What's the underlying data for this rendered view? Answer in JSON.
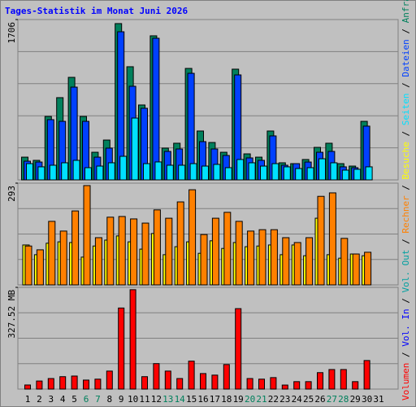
{
  "chart_data": [
    {
      "type": "bar",
      "title": "Tages-Statistik im Monat Juni 2026",
      "ylim": [
        0,
        1706
      ],
      "yticks": [
        1706
      ],
      "series": [
        {
          "name": "Anfragen",
          "color": "#00805c",
          "values": [
            242,
            208,
            675,
            875,
            1091,
            675,
            294,
            424,
            1663,
            1204,
            797,
            1533,
            338,
            390,
            1186,
            520,
            398,
            294,
            1178,
            277,
            242,
            520,
            182,
            173,
            217,
            346,
            390,
            173,
            147,
            623,
            0
          ]
        },
        {
          "name": "Dateien",
          "color": "#0040ff",
          "values": [
            199,
            190,
            641,
            623,
            987,
            623,
            242,
            338,
            1576,
            996,
            762,
            1507,
            303,
            329,
            1134,
            407,
            329,
            260,
            1117,
            234,
            208,
            468,
            156,
            173,
            190,
            294,
            303,
            139,
            130,
            572,
            0
          ]
        },
        {
          "name": "Seiten",
          "color": "#00e0ff",
          "values": [
            173,
            139,
            156,
            182,
            208,
            130,
            147,
            182,
            251,
            658,
            173,
            191,
            156,
            156,
            173,
            147,
            165,
            130,
            217,
            182,
            147,
            173,
            139,
            121,
            130,
            225,
            182,
            104,
            113,
            139,
            0
          ]
        }
      ]
    },
    {
      "type": "bar",
      "ylim": [
        0,
        293
      ],
      "yticks": [
        293
      ],
      "series": [
        {
          "name": "Besuche",
          "color": "#ffff00",
          "values": [
            115,
            87,
            120,
            124,
            122,
            80,
            112,
            129,
            141,
            124,
            103,
            148,
            87,
            110,
            124,
            91,
            127,
            105,
            122,
            110,
            112,
            115,
            87,
            115,
            84,
            192,
            87,
            77,
            89,
            84,
            0
          ]
        },
        {
          "name": "Rechner",
          "color": "#ff8000",
          "values": [
            112,
            101,
            183,
            155,
            213,
            286,
            136,
            195,
            197,
            190,
            178,
            216,
            192,
            239,
            274,
            145,
            192,
            209,
            183,
            155,
            159,
            159,
            136,
            122,
            136,
            255,
            265,
            134,
            89,
            94,
            0
          ]
        }
      ]
    },
    {
      "type": "bar",
      "ylim": [
        0,
        327.52
      ],
      "yticks": [
        {
          "value": 327.52,
          "label": "327.52 MB"
        }
      ],
      "categories": [
        "1",
        "2",
        "3",
        "4",
        "5",
        "6",
        "7",
        "8",
        "9",
        "10",
        "11",
        "12",
        "13",
        "14",
        "15",
        "16",
        "17",
        "18",
        "19",
        "20",
        "21",
        "22",
        "23",
        "24",
        "25",
        "26",
        "27",
        "28",
        "29",
        "30",
        "31"
      ],
      "category_colors": [
        "#000000",
        "#000000",
        "#000000",
        "#000000",
        "#000000",
        "#00805c",
        "#00805c",
        "#000000",
        "#000000",
        "#000000",
        "#000000",
        "#000000",
        "#00805c",
        "#00805c",
        "#000000",
        "#000000",
        "#000000",
        "#000000",
        "#000000",
        "#00805c",
        "#00805c",
        "#000000",
        "#000000",
        "#000000",
        "#000000",
        "#000000",
        "#00805c",
        "#00805c",
        "#000000",
        "#000000",
        "#000000"
      ],
      "series": [
        {
          "name": "Volumen",
          "color": "#ff0000",
          "values": [
            13.2,
            26,
            34,
            40,
            42,
            29,
            32,
            58,
            261,
            320,
            40,
            82,
            58,
            34,
            90,
            50,
            45,
            79,
            259,
            34,
            32,
            37,
            13,
            24,
            24,
            53,
            63,
            63,
            24,
            92,
            0
          ]
        }
      ],
      "extra_legend": [
        {
          "name": "Vol. In",
          "color": "#0000ff"
        },
        {
          "name": "Vol. Out",
          "color": "#00a0a0"
        }
      ]
    }
  ]
}
